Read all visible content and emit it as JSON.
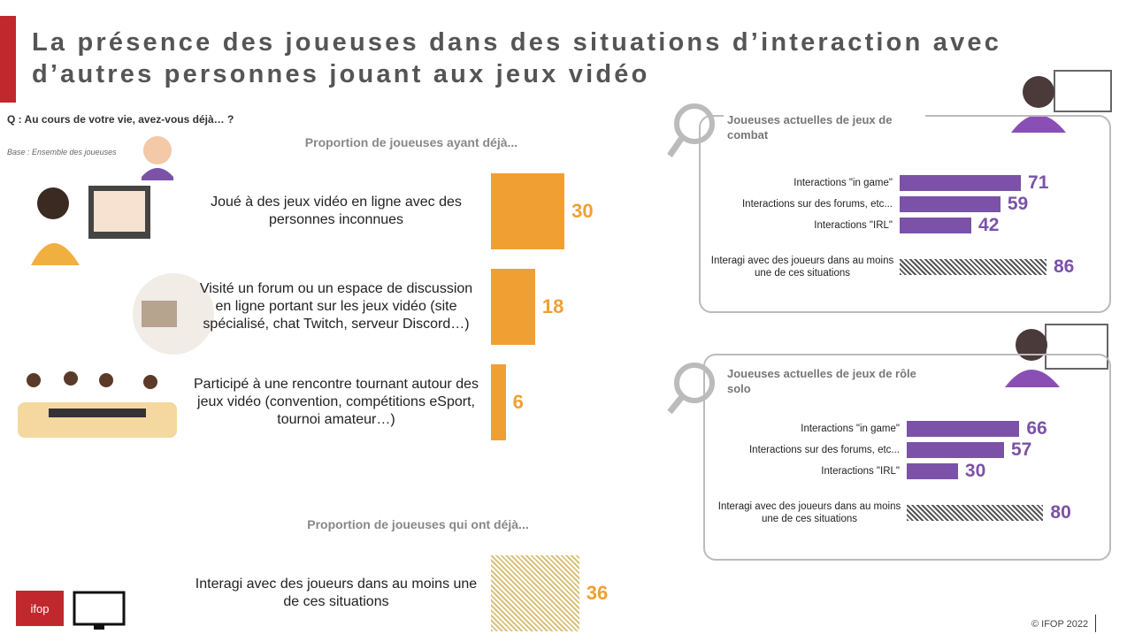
{
  "title": "La présence des joueuses dans des situations d’interaction avec d’autres personnes jouant aux jeux vidéo",
  "question": "Q : Au cours de votre vie, avez-vous déjà… ?",
  "base": "Base : Ensemble des joueuses",
  "logo": "ifop",
  "copyright": "© IFOP 2022",
  "chart_data": [
    {
      "type": "bar",
      "subtitle": "Proportion de joueuses ayant déjà...",
      "categories": [
        "Joué à des jeux vidéo en ligne avec des personnes inconnues",
        "Visité un forum ou un espace de discussion en ligne portant sur les jeux vidéo (site spécialisé, chat Twitch, serveur Discord…)",
        "Participé à une rencontre tournant autour des jeux vidéo (convention, compétitions eSport, tournoi amateur…)"
      ],
      "values": [
        30,
        18,
        6
      ],
      "colors": [
        "#f0a033",
        "#f0a033",
        "#f0a033"
      ],
      "hatched": [
        false,
        false,
        false
      ],
      "label_color": "#f0a033"
    },
    {
      "type": "bar",
      "subtitle": "Proportion de joueuses qui ont déjà...",
      "categories": [
        "Interagi avec des joueurs dans au moins une de ces situations"
      ],
      "values": [
        36
      ],
      "colors": [
        "#d9c27a"
      ],
      "hatched": [
        true
      ],
      "label_color": "#f0a033"
    },
    {
      "type": "bar",
      "title": "Joueuses actuelles de jeux de combat",
      "categories": [
        "Interactions \"in game\"",
        "Interactions sur des forums, etc...",
        "Interactions \"IRL\"",
        "Interagi avec des joueurs dans au moins une de ces situations"
      ],
      "values": [
        71,
        59,
        42,
        86
      ],
      "colors": [
        "#7b52a8",
        "#7b52a8",
        "#7b52a8",
        "#555555"
      ],
      "hatched": [
        false,
        false,
        false,
        true
      ],
      "label_color": "#7b52a8"
    },
    {
      "type": "bar",
      "title": "Joueuses actuelles de jeux de rôle solo",
      "categories": [
        "Interactions \"in game\"",
        "Interactions sur des forums, etc...",
        "Interactions \"IRL\"",
        "Interagi avec des joueurs dans au moins une de ces situations"
      ],
      "values": [
        66,
        57,
        30,
        80
      ],
      "colors": [
        "#7b52a8",
        "#7b52a8",
        "#7b52a8",
        "#555555"
      ],
      "hatched": [
        false,
        false,
        false,
        true
      ],
      "label_color": "#7b52a8"
    }
  ]
}
